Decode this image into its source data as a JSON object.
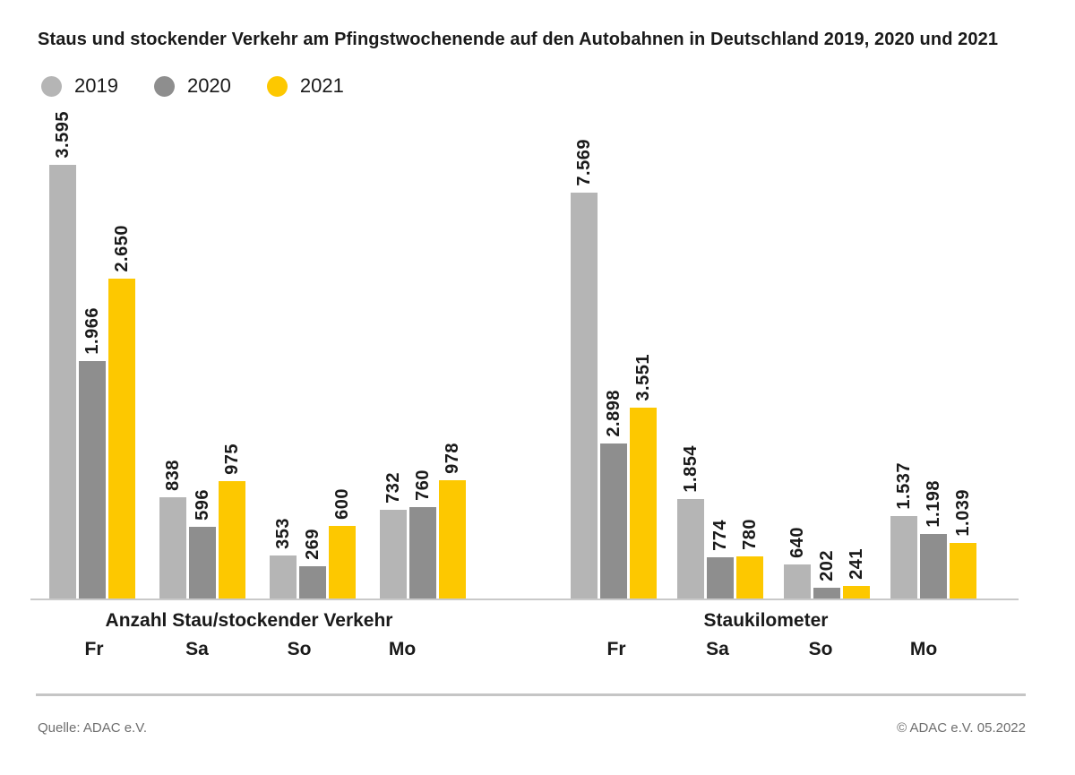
{
  "title": "Staus und stockender Verkehr am Pfingstwochenende auf den Autobahnen in Deutschland 2019, 2020 und 2021",
  "colors": {
    "gray_2019": "#b5b5b5",
    "gray_2020": "#8e8e8e",
    "yellow_2021": "#fdc800",
    "axis_line": "#c9c9c9"
  },
  "legend": [
    {
      "label": "2019",
      "color": "#b5b5b5"
    },
    {
      "label": "2020",
      "color": "#8e8e8e"
    },
    {
      "label": "2021",
      "color": "#fdc800"
    }
  ],
  "chart_data": [
    {
      "type": "bar",
      "title": "Anzahl Stau/stockender Verkehr",
      "categories": [
        "Fr",
        "Sa",
        "So",
        "Mo"
      ],
      "series": [
        {
          "name": "2019",
          "color": "#b5b5b5",
          "values": [
            3595,
            838,
            353,
            732
          ],
          "labels": [
            "3.595",
            "838",
            "353",
            "732"
          ]
        },
        {
          "name": "2020",
          "color": "#8e8e8e",
          "values": [
            1966,
            596,
            269,
            760
          ],
          "labels": [
            "1.966",
            "596",
            "269",
            "760"
          ]
        },
        {
          "name": "2021",
          "color": "#fdc800",
          "values": [
            2650,
            975,
            600,
            978
          ],
          "labels": [
            "2.650",
            "975",
            "600",
            "978"
          ]
        }
      ],
      "ylim": [
        0,
        3650
      ],
      "grid": false,
      "legend_position": "top-left"
    },
    {
      "type": "bar",
      "title": "Staukilometer",
      "categories": [
        "Fr",
        "Sa",
        "So",
        "Mo"
      ],
      "series": [
        {
          "name": "2019",
          "color": "#b5b5b5",
          "values": [
            7569,
            1854,
            640,
            1537
          ],
          "labels": [
            "7.569",
            "1.854",
            "640",
            "1.537"
          ]
        },
        {
          "name": "2020",
          "color": "#8e8e8e",
          "values": [
            2898,
            774,
            202,
            1198
          ],
          "labels": [
            "2.898",
            "774",
            "202",
            "1.198"
          ]
        },
        {
          "name": "2021",
          "color": "#fdc800",
          "values": [
            3551,
            780,
            241,
            1039
          ],
          "labels": [
            "3.551",
            "780",
            "241",
            "1.039"
          ]
        }
      ],
      "ylim": [
        0,
        7700
      ],
      "grid": false,
      "legend_position": "top-left"
    }
  ],
  "footer": {
    "source": "Quelle: ADAC e.V.",
    "copyright": "© ADAC e.V. 05.2022"
  }
}
